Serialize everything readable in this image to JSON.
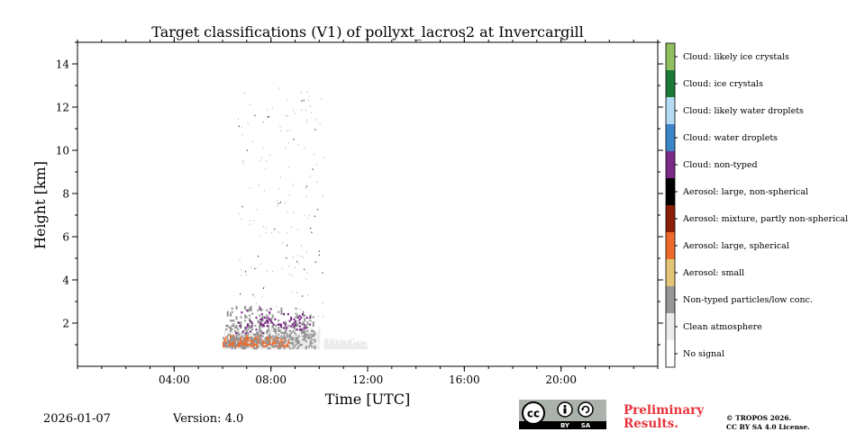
{
  "chart_data": {
    "type": "heatmap",
    "title": "Target classifications (V1) of pollyxt_lacros2 at Invercargill",
    "xlabel": "Time [UTC]",
    "ylabel": "Height [km]",
    "xlim_hours": [
      0,
      24
    ],
    "ylim_km": [
      0,
      15
    ],
    "x_ticks": [
      {
        "value": 4,
        "label": "04:00"
      },
      {
        "value": 8,
        "label": "08:00"
      },
      {
        "value": 12,
        "label": "12:00"
      },
      {
        "value": 16,
        "label": "16:00"
      },
      {
        "value": 20,
        "label": "20:00"
      }
    ],
    "y_ticks": [
      {
        "value": 2,
        "label": "2"
      },
      {
        "value": 4,
        "label": "4"
      },
      {
        "value": 6,
        "label": "6"
      },
      {
        "value": 8,
        "label": "8"
      },
      {
        "value": 10,
        "label": "10"
      },
      {
        "value": 12,
        "label": "12"
      },
      {
        "value": 14,
        "label": "14"
      }
    ],
    "legend": {
      "placement": "right colorbar",
      "classes": [
        {
          "label": "Cloud: likely ice crystals",
          "color": "#8fbf5f"
        },
        {
          "label": "Cloud: ice crystals",
          "color": "#1b7a3a"
        },
        {
          "label": "Cloud: likely water droplets",
          "color": "#b5daf5"
        },
        {
          "label": "Cloud: water droplets",
          "color": "#3a86c8"
        },
        {
          "label": "Cloud: non-typed",
          "color": "#7b2a86"
        },
        {
          "label": "Aerosol: large, non-spherical",
          "color": "#000000"
        },
        {
          "label": "Aerosol: mixture, partly non-spherical",
          "color": "#8b1f07"
        },
        {
          "label": "Aerosol: large, spherical",
          "color": "#ee6a2a"
        },
        {
          "label": "Aerosol: small",
          "color": "#e2c675"
        },
        {
          "label": "Non-typed particles/low conc.",
          "color": "#969696"
        },
        {
          "label": "Clean atmosphere",
          "color": "#ececec"
        },
        {
          "label": "No signal",
          "color": "#ffffff"
        }
      ]
    },
    "regions": [
      {
        "class": "Clean atmosphere",
        "t_start": 6.0,
        "t_end": 10.0,
        "z_bottom": 0.8,
        "z_top": 1.9
      },
      {
        "class": "Clean atmosphere",
        "t_start": 10.2,
        "t_end": 12.0,
        "z_bottom": 0.8,
        "z_top": 1.3
      },
      {
        "class": "Aerosol: large, spherical",
        "t_start": 6.0,
        "t_end": 8.7,
        "z_bottom": 0.9,
        "z_top": 1.4
      },
      {
        "class": "Non-typed particles/low conc.",
        "t_start": 6.0,
        "t_end": 9.8,
        "z_bottom": 0.8,
        "z_top": 2.8
      },
      {
        "class": "Cloud: non-typed",
        "t_start": 6.4,
        "t_end": 9.7,
        "z_bottom": 1.5,
        "z_top": 2.8
      }
    ]
  },
  "footer": {
    "date": "2026-01-07",
    "version": "Version: 4.0",
    "license_badge": {
      "cc": "cc",
      "by": "BY",
      "sa": "SA"
    },
    "preliminary_line1": "Preliminary",
    "preliminary_line2": "Results.",
    "copyright_line1": "© TROPOS 2026.",
    "copyright_line2": "CC BY SA 4.0 License."
  }
}
